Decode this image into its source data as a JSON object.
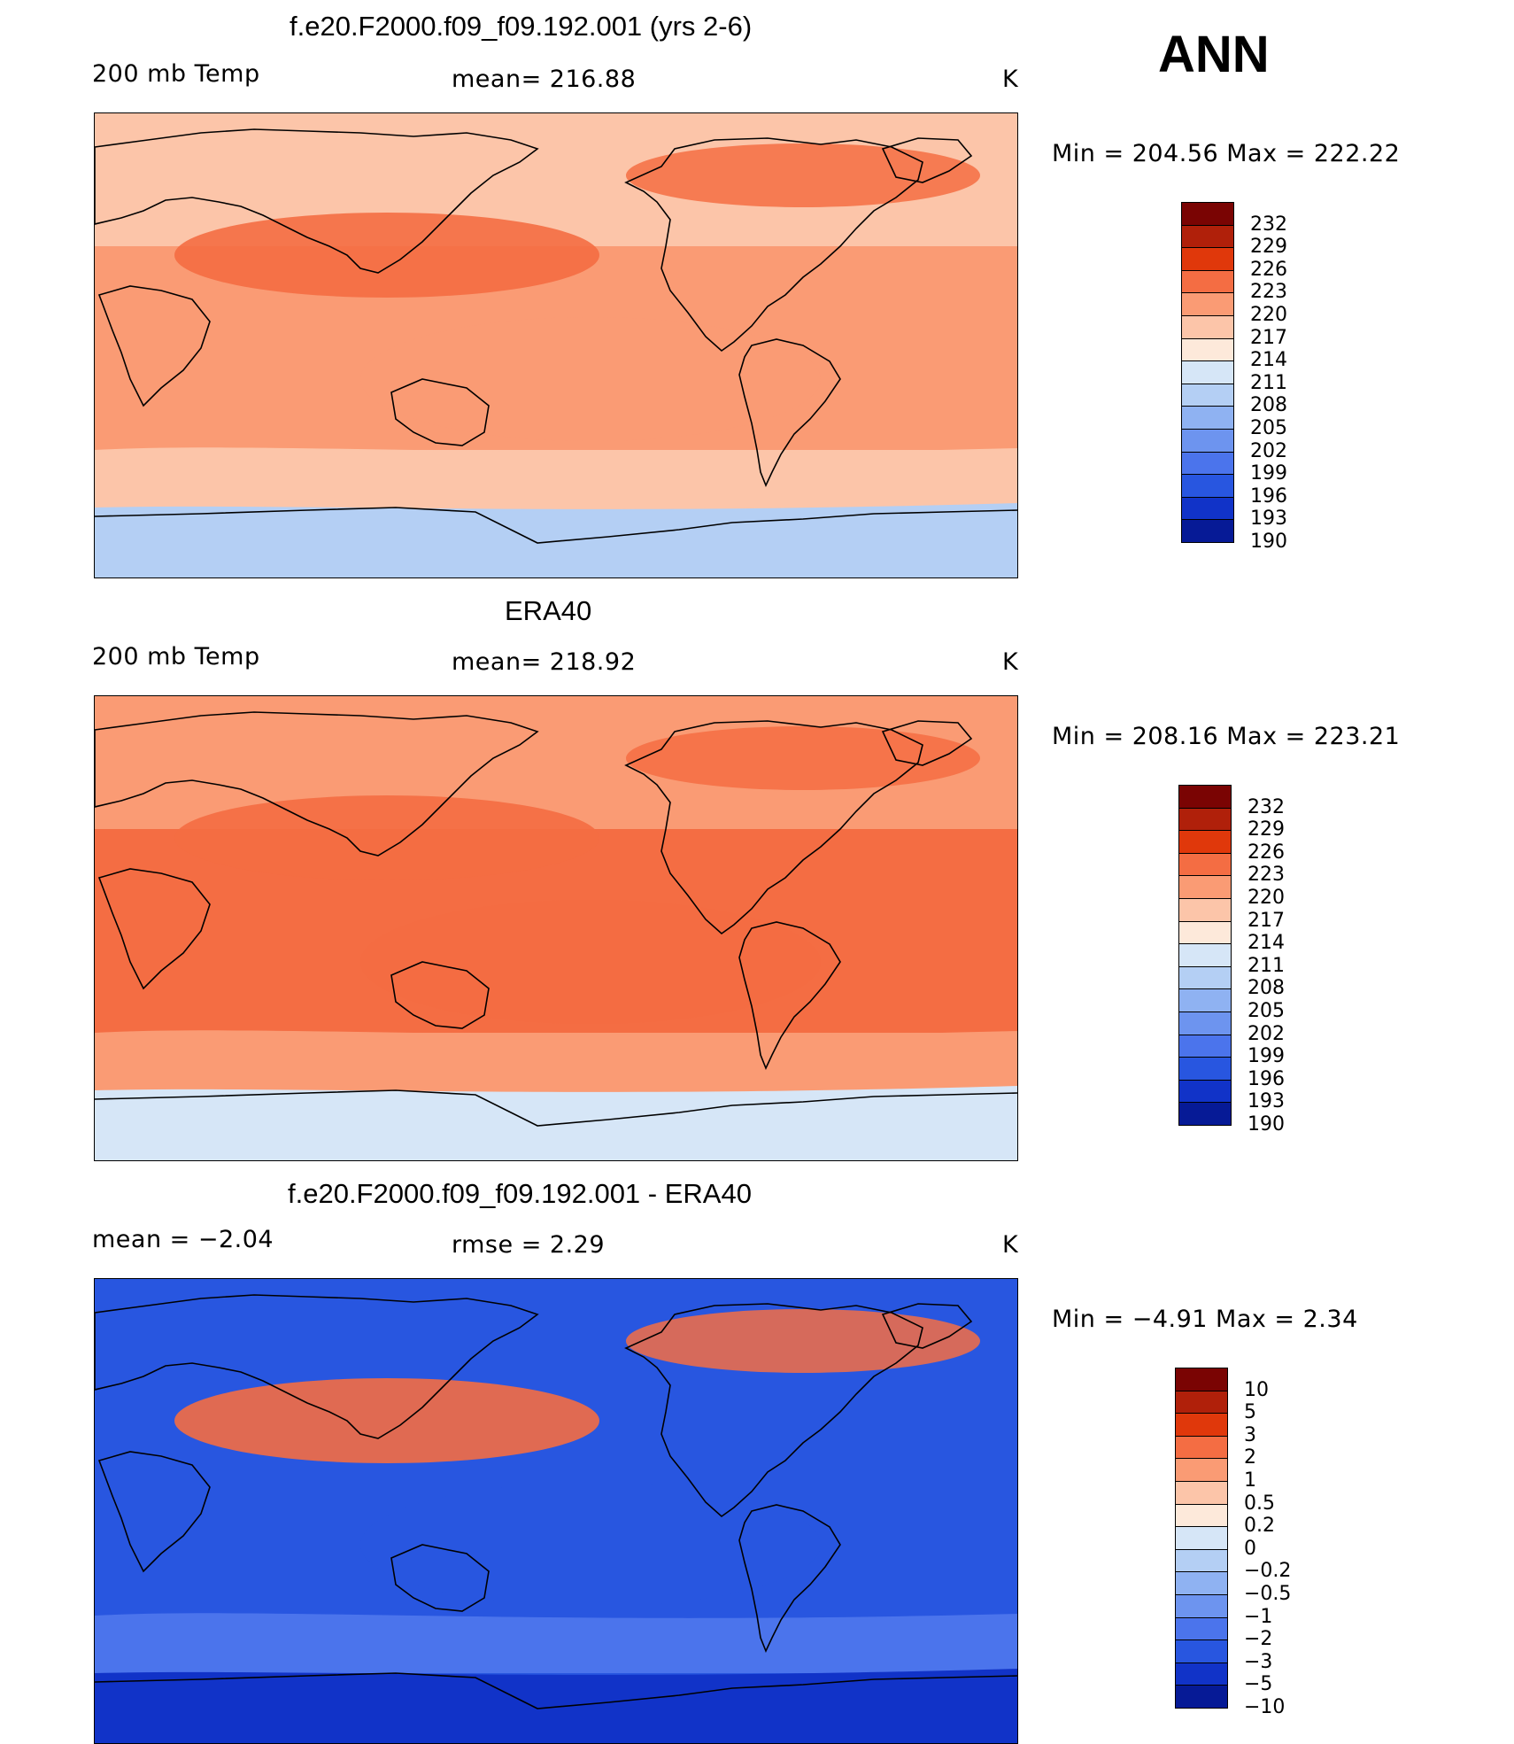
{
  "season": "ANN",
  "panels": [
    {
      "title": "f.e20.F2000.f09_f09.192.001 (yrs 2-6)",
      "left_label": "200 mb Temp",
      "center_label": "mean= 216.88",
      "unit": "K",
      "minmax": "Min  =  204.56  Max  =  222.22",
      "colorbar": {
        "labels": [
          "232",
          "229",
          "226",
          "223",
          "220",
          "217",
          "214",
          "211",
          "208",
          "205",
          "202",
          "199",
          "196",
          "193",
          "190"
        ],
        "colors": [
          "#7a0403",
          "#b0200a",
          "#e0380b",
          "#f46d43",
          "#fa9b74",
          "#fcc5a9",
          "#fde9da",
          "#d6e6f7",
          "#b4cff4",
          "#8fb2f2",
          "#6d94ef",
          "#4b74ec",
          "#2856e0",
          "#1133c8",
          "#061a96"
        ]
      },
      "regions": {
        "north": "#fcc5a9",
        "tropics": "#fa9b74",
        "jet": "#f46d43",
        "south": "#fcc5a9",
        "antarctic": "#b4cff4"
      }
    },
    {
      "title": "ERA40",
      "left_label": "200 mb Temp",
      "center_label": "mean= 218.92",
      "unit": "K",
      "minmax": "Min  =  208.16  Max  =  223.21",
      "colorbar": {
        "labels": [
          "232",
          "229",
          "226",
          "223",
          "220",
          "217",
          "214",
          "211",
          "208",
          "205",
          "202",
          "199",
          "196",
          "193",
          "190"
        ],
        "colors": [
          "#7a0403",
          "#b0200a",
          "#e0380b",
          "#f46d43",
          "#fa9b74",
          "#fcc5a9",
          "#fde9da",
          "#d6e6f7",
          "#b4cff4",
          "#8fb2f2",
          "#6d94ef",
          "#4b74ec",
          "#2856e0",
          "#1133c8",
          "#061a96"
        ]
      },
      "regions": {
        "north": "#fa9b74",
        "tropics": "#f46d43",
        "jet": "#f46d43",
        "south": "#fa9b74",
        "antarctic": "#d6e6f7"
      }
    },
    {
      "title": "f.e20.F2000.f09_f09.192.001 - ERA40",
      "left_label": "mean =    −2.04",
      "center_label": "rmse =     2.29",
      "unit": "K",
      "minmax": "Min  =    −4.91  Max  =      2.34",
      "colorbar": {
        "labels": [
          "10",
          "5",
          "3",
          "2",
          "1",
          "0.5",
          "0.2",
          "0",
          "−0.2",
          "−0.5",
          "−1",
          "−2",
          "−3",
          "−5",
          "−10"
        ],
        "colors": [
          "#7a0403",
          "#b0200a",
          "#e0380b",
          "#f46d43",
          "#fa9b74",
          "#fcc5a9",
          "#fde9da",
          "#d6e6f7",
          "#b4cff4",
          "#8fb2f2",
          "#6d94ef",
          "#4b74ec",
          "#2856e0",
          "#1133c8",
          "#061a96"
        ]
      },
      "regions": {
        "north": "#2856e0",
        "tropics": "#2856e0",
        "jet": "#f46d43",
        "south": "#4b74ec",
        "antarctic": "#1133c8"
      }
    }
  ]
}
